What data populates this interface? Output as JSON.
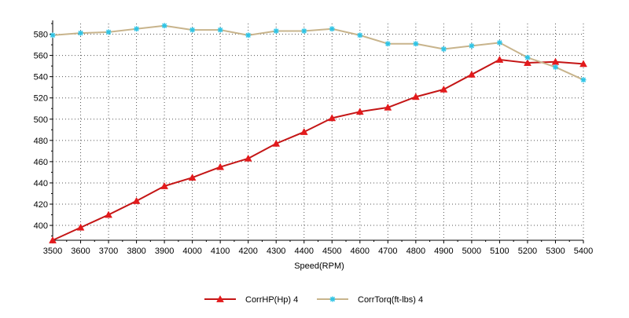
{
  "chart_data": {
    "type": "line",
    "title": "",
    "xlabel": "Speed(RPM)",
    "ylabel": "",
    "x": [
      3500,
      3600,
      3700,
      3800,
      3900,
      4000,
      4100,
      4200,
      4300,
      4400,
      4500,
      4600,
      4700,
      4800,
      4900,
      5000,
      5100,
      5200,
      5300,
      5400
    ],
    "xlim": [
      3500,
      5400
    ],
    "ylim": [
      386,
      590
    ],
    "yticks": [
      400,
      420,
      440,
      460,
      480,
      500,
      520,
      540,
      560,
      580
    ],
    "grid": true,
    "legend_position": "bottom",
    "series": [
      {
        "name": "CorrHP(Hp)  4",
        "color": "#e31a1c",
        "line_color": "#c41515",
        "marker": "triangle",
        "values": [
          386,
          398,
          410,
          423,
          437,
          445,
          455,
          463,
          477,
          488,
          501,
          507,
          511,
          521,
          528,
          542,
          556,
          553,
          554,
          552
        ]
      },
      {
        "name": "CorrTorq(ft-lbs)  4",
        "color": "#2ec4e6",
        "line_color": "#c8b48c",
        "marker": "asterisk",
        "values": [
          579,
          581,
          582,
          585,
          588,
          584,
          584,
          579,
          583,
          583,
          585,
          579,
          571,
          571,
          566,
          569,
          572,
          558,
          549,
          537
        ]
      }
    ]
  }
}
